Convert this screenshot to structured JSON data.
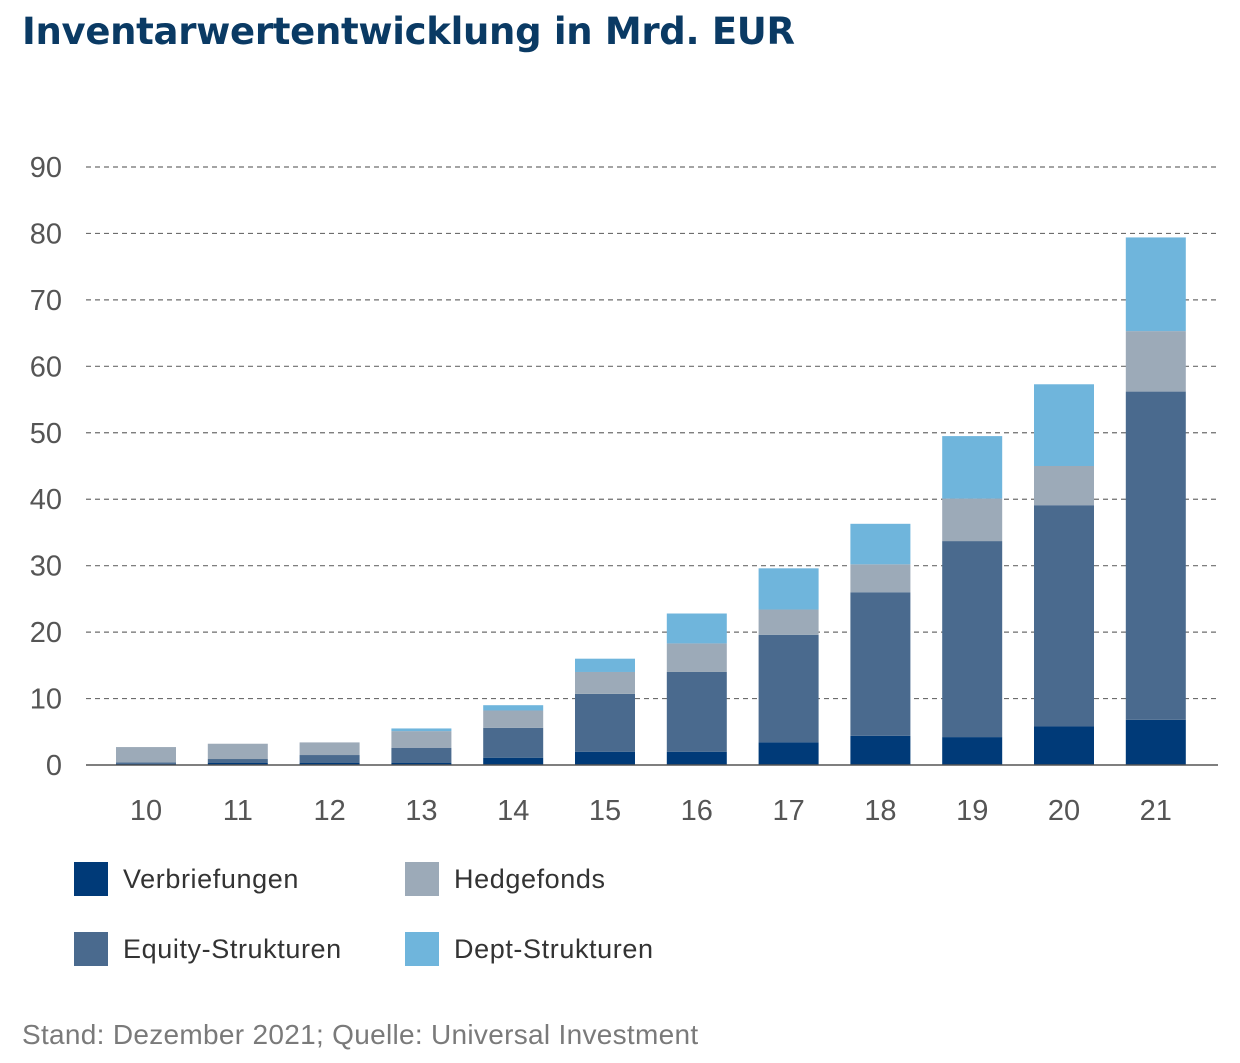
{
  "title": "Inventarwertentwicklung in Mrd. EUR",
  "source": "Stand: Dezember 2021; Quelle: Universal Investment",
  "colors": {
    "verbriefungen": "#003a78",
    "equity": "#4a6a8e",
    "hedgefonds": "#9caab8",
    "dept": "#6fb5dc",
    "grid": "#6d6d6d",
    "axis": "#555555"
  },
  "chart_data": {
    "type": "bar",
    "stacked": true,
    "title": "Inventarwertentwicklung in Mrd. EUR",
    "categories": [
      "10",
      "11",
      "12",
      "13",
      "14",
      "15",
      "16",
      "17",
      "18",
      "19",
      "20",
      "21"
    ],
    "series": [
      {
        "name": "Verbriefungen",
        "color": "#003a78",
        "values": [
          0.2,
          0.3,
          0.3,
          0.3,
          1.1,
          2.0,
          2.0,
          3.4,
          4.4,
          4.2,
          5.8,
          6.8
        ]
      },
      {
        "name": "Equity-Strukturen",
        "color": "#4a6a8e",
        "values": [
          0.2,
          0.6,
          1.2,
          2.3,
          4.5,
          8.7,
          12.0,
          16.2,
          21.6,
          29.5,
          33.3,
          49.4
        ]
      },
      {
        "name": "Hedgefonds",
        "color": "#9caab8",
        "values": [
          2.3,
          2.3,
          1.9,
          2.5,
          2.6,
          3.3,
          4.3,
          3.8,
          4.2,
          6.4,
          5.9,
          9.1
        ]
      },
      {
        "name": "Dept-Strukturen",
        "color": "#6fb5dc",
        "values": [
          0,
          0,
          0,
          0.4,
          0.8,
          2.0,
          4.5,
          6.2,
          6.1,
          9.4,
          12.3,
          14.1
        ]
      }
    ],
    "yticks": [
      "0",
      "10",
      "20",
      "30",
      "40",
      "50",
      "60",
      "70",
      "80",
      "90"
    ],
    "ylim": [
      0,
      90
    ],
    "grid": true,
    "legend_position": "bottom",
    "xlabel": "",
    "ylabel": ""
  },
  "legend": [
    {
      "label": "Verbriefungen",
      "color": "#003a78"
    },
    {
      "label": "Hedgefonds",
      "color": "#9caab8"
    },
    {
      "label": "Equity-Strukturen",
      "color": "#4a6a8e"
    },
    {
      "label": "Dept-Strukturen",
      "color": "#6fb5dc"
    }
  ]
}
